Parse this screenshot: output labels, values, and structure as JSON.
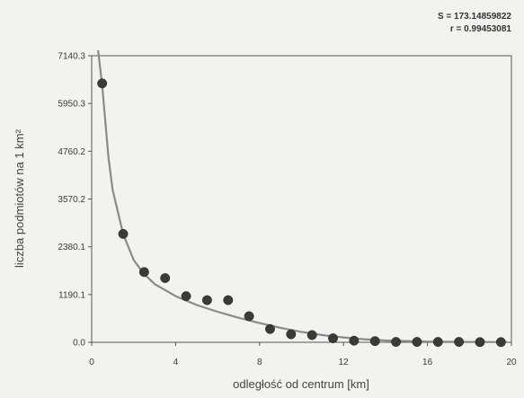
{
  "chart_data": {
    "type": "scatter",
    "stats": {
      "s": "S = 173.14859822",
      "r": "r = 0.99453081"
    },
    "xlabel": "odległość od centrum [km]",
    "ylabel": "liczba podmiotów na 1 km²",
    "xlim": [
      0,
      20
    ],
    "ylim": [
      0,
      7140.3
    ],
    "x_ticks": [
      0,
      4,
      8,
      12,
      16,
      20
    ],
    "y_ticks": [
      {
        "value": 0.0,
        "label": "0.0"
      },
      {
        "value": 1190.1,
        "label": "1190.1"
      },
      {
        "value": 2380.1,
        "label": "2380.1"
      },
      {
        "value": 3570.2,
        "label": "3570.2"
      },
      {
        "value": 4760.2,
        "label": "4760.2"
      },
      {
        "value": 5950.3,
        "label": "5950.3"
      },
      {
        "value": 7140.3,
        "label": "7140.3"
      }
    ],
    "points": [
      {
        "x": 0.5,
        "y": 6450
      },
      {
        "x": 1.5,
        "y": 2700
      },
      {
        "x": 2.5,
        "y": 1750
      },
      {
        "x": 3.5,
        "y": 1600
      },
      {
        "x": 4.5,
        "y": 1150
      },
      {
        "x": 5.5,
        "y": 1050
      },
      {
        "x": 6.5,
        "y": 1050
      },
      {
        "x": 7.5,
        "y": 650
      },
      {
        "x": 8.5,
        "y": 330
      },
      {
        "x": 9.5,
        "y": 200
      },
      {
        "x": 10.5,
        "y": 180
      },
      {
        "x": 11.5,
        "y": 100
      },
      {
        "x": 12.5,
        "y": 40
      },
      {
        "x": 13.5,
        "y": 30
      },
      {
        "x": 14.5,
        "y": 10
      },
      {
        "x": 15.5,
        "y": 10
      },
      {
        "x": 16.5,
        "y": 10
      },
      {
        "x": 17.5,
        "y": 10
      },
      {
        "x": 18.5,
        "y": 5
      },
      {
        "x": 19.5,
        "y": 5
      }
    ],
    "fit_curve": {
      "type": "smooth",
      "x_range": [
        0.3,
        19.8
      ],
      "samples": [
        {
          "x": 0.3,
          "y": 7300
        },
        {
          "x": 0.5,
          "y": 6400
        },
        {
          "x": 0.8,
          "y": 4600
        },
        {
          "x": 1.0,
          "y": 3800
        },
        {
          "x": 1.5,
          "y": 2700
        },
        {
          "x": 2.0,
          "y": 2050
        },
        {
          "x": 2.5,
          "y": 1700
        },
        {
          "x": 3.0,
          "y": 1450
        },
        {
          "x": 4.0,
          "y": 1150
        },
        {
          "x": 5.0,
          "y": 930
        },
        {
          "x": 6.0,
          "y": 760
        },
        {
          "x": 7.0,
          "y": 610
        },
        {
          "x": 8.0,
          "y": 480
        },
        {
          "x": 9.0,
          "y": 360
        },
        {
          "x": 10.0,
          "y": 260
        },
        {
          "x": 11.0,
          "y": 180
        },
        {
          "x": 12.0,
          "y": 120
        },
        {
          "x": 13.0,
          "y": 75
        },
        {
          "x": 14.0,
          "y": 45
        },
        {
          "x": 16.0,
          "y": 18
        },
        {
          "x": 18.0,
          "y": 8
        },
        {
          "x": 19.8,
          "y": 4
        }
      ]
    },
    "grid": false,
    "colors": {
      "points": "#3a3a3a",
      "curve": "#8a8a8a",
      "axes": "#555555"
    }
  }
}
